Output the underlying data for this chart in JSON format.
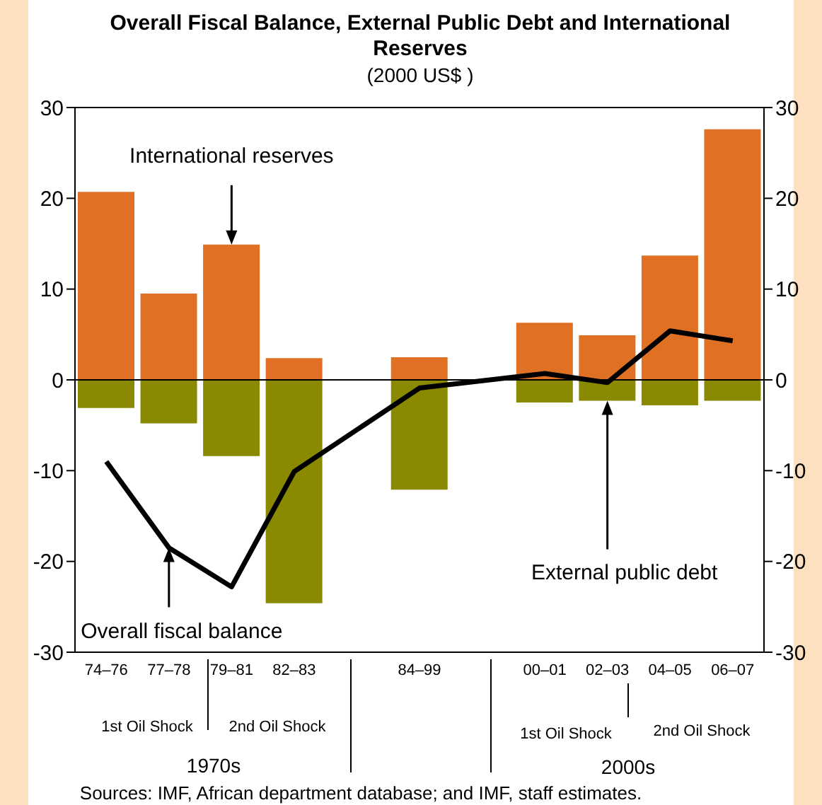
{
  "chart_data": {
    "type": "bar",
    "title": "Overall Fiscal Balance, External Public Debt and International Reserves",
    "subtitle": "(2000 US$ )",
    "categories": [
      "74–76",
      "77–78",
      "79–81",
      "82–83",
      null,
      "84–99",
      null,
      "00–01",
      "02–03",
      "04–05",
      "06–07"
    ],
    "stacked": true,
    "series": [
      {
        "name": "International reserves",
        "color": "#e07124",
        "values": [
          20.7,
          9.5,
          14.9,
          2.4,
          null,
          2.5,
          null,
          6.3,
          4.9,
          13.7,
          27.6
        ]
      },
      {
        "name": "External public debt",
        "color": "#8a8a00",
        "values": [
          -3.1,
          -4.8,
          -8.4,
          -24.6,
          null,
          -12.1,
          null,
          -2.5,
          -2.3,
          -2.8,
          -2.3
        ]
      },
      {
        "name": "Overall fiscal balance",
        "type": "line",
        "color": "#000000",
        "values": [
          -9,
          -18.5,
          -22.8,
          -10.1,
          null,
          -0.9,
          null,
          0.7,
          -0.3,
          5.4,
          4.3
        ]
      }
    ],
    "marker": "none",
    "ylim": [
      -30,
      30
    ],
    "yticks": [
      -30,
      -20,
      -10,
      0,
      10,
      20,
      30
    ],
    "y2lim": [
      -30,
      30
    ],
    "y2ticks": [
      -30,
      -20,
      -10,
      0,
      10,
      20,
      30
    ],
    "ref_lines": [
      {
        "axis": "y",
        "value": 0,
        "color": "#000000"
      }
    ],
    "annotations": [
      "1st Oil Shock",
      "2nd Oil Shock",
      "1st Oil Shock",
      "2nd Oil Shock",
      "1970s",
      "2000s",
      "Sources: IMF, African department database; and IMF, staff estimates."
    ]
  }
}
